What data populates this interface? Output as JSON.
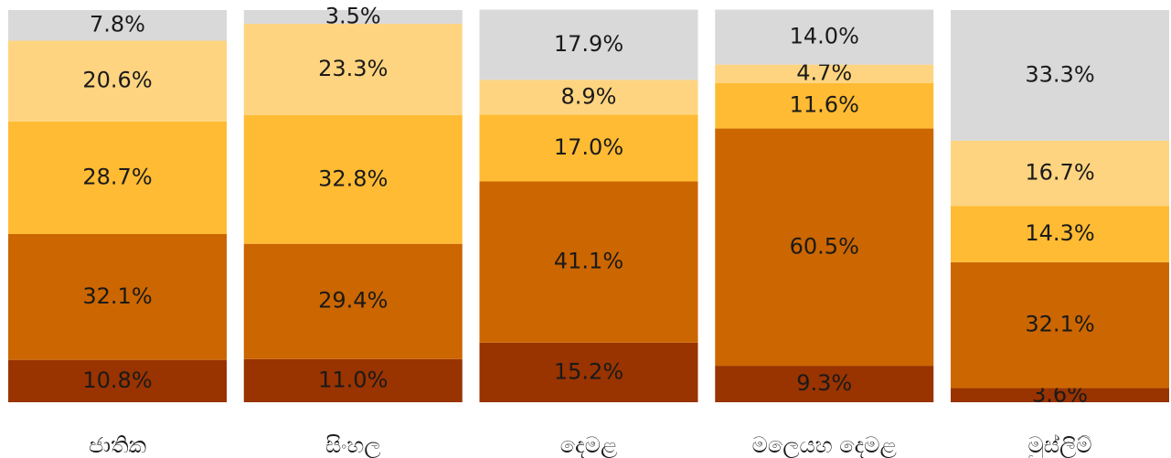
{
  "chart_data": {
    "type": "stacked_bar",
    "categories": [
      "ජාතික",
      "සිංහල",
      "දෙමළ",
      "මලෙයහ දෙමළ",
      "මුස්ලිම්"
    ],
    "ylim": [
      0,
      100
    ],
    "series": [
      {
        "color": "#993300",
        "values": [
          10.8,
          11.0,
          15.2,
          9.3,
          3.6
        ],
        "value_labels": [
          "10.8%",
          "11.0%",
          "15.2%",
          "9.3%",
          "3.6%"
        ]
      },
      {
        "color": "#cc6600",
        "values": [
          32.1,
          29.4,
          41.1,
          60.5,
          32.1
        ],
        "value_labels": [
          "32.1%",
          "29.4%",
          "41.1%",
          "60.5%",
          "32.1%"
        ]
      },
      {
        "color": "#ffbb33",
        "values": [
          28.7,
          32.8,
          17.0,
          11.6,
          14.3
        ],
        "value_labels": [
          "28.7%",
          "32.8%",
          "17.0%",
          "11.6%",
          "14.3%"
        ]
      },
      {
        "color": "#ffd480",
        "values": [
          20.6,
          23.3,
          8.9,
          4.7,
          16.7
        ],
        "value_labels": [
          "20.6%",
          "23.3%",
          "8.9%",
          "4.7%",
          "16.7%"
        ]
      },
      {
        "color": "#d9d9d9",
        "values": [
          7.8,
          3.5,
          17.9,
          14.0,
          33.3
        ],
        "value_labels": [
          "7.8%",
          "3.5%",
          "17.9%",
          "14.0%",
          "33.3%"
        ]
      }
    ]
  }
}
